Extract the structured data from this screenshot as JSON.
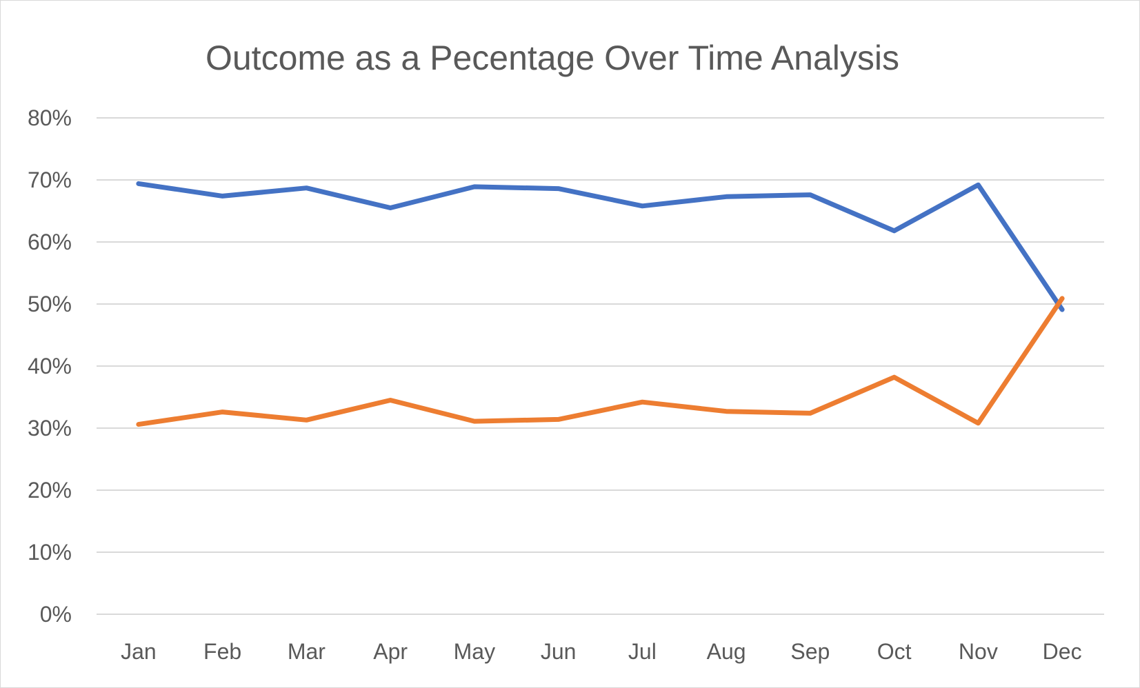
{
  "chart_data": {
    "type": "line",
    "title": "Outcome as a Pecentage Over Time Analysis",
    "xlabel": "",
    "ylabel": "",
    "categories": [
      "Jan",
      "Feb",
      "Mar",
      "Apr",
      "May",
      "Jun",
      "Jul",
      "Aug",
      "Sep",
      "Oct",
      "Nov",
      "Dec"
    ],
    "ylim": [
      0,
      0.8
    ],
    "yticks": [
      0,
      0.1,
      0.2,
      0.3,
      0.4,
      0.5,
      0.6,
      0.7,
      0.8
    ],
    "ytick_labels": [
      "0%",
      "10%",
      "20%",
      "30%",
      "40%",
      "50%",
      "60%",
      "70%",
      "80%"
    ],
    "grid": true,
    "legend": "none",
    "series": [
      {
        "color": "#4472c4",
        "values": [
          0.694,
          0.674,
          0.687,
          0.655,
          0.689,
          0.686,
          0.658,
          0.673,
          0.676,
          0.618,
          0.692,
          0.491
        ]
      },
      {
        "color": "#ed7d31",
        "values": [
          0.306,
          0.326,
          0.313,
          0.345,
          0.311,
          0.314,
          0.342,
          0.327,
          0.324,
          0.382,
          0.308,
          0.509
        ]
      }
    ]
  }
}
